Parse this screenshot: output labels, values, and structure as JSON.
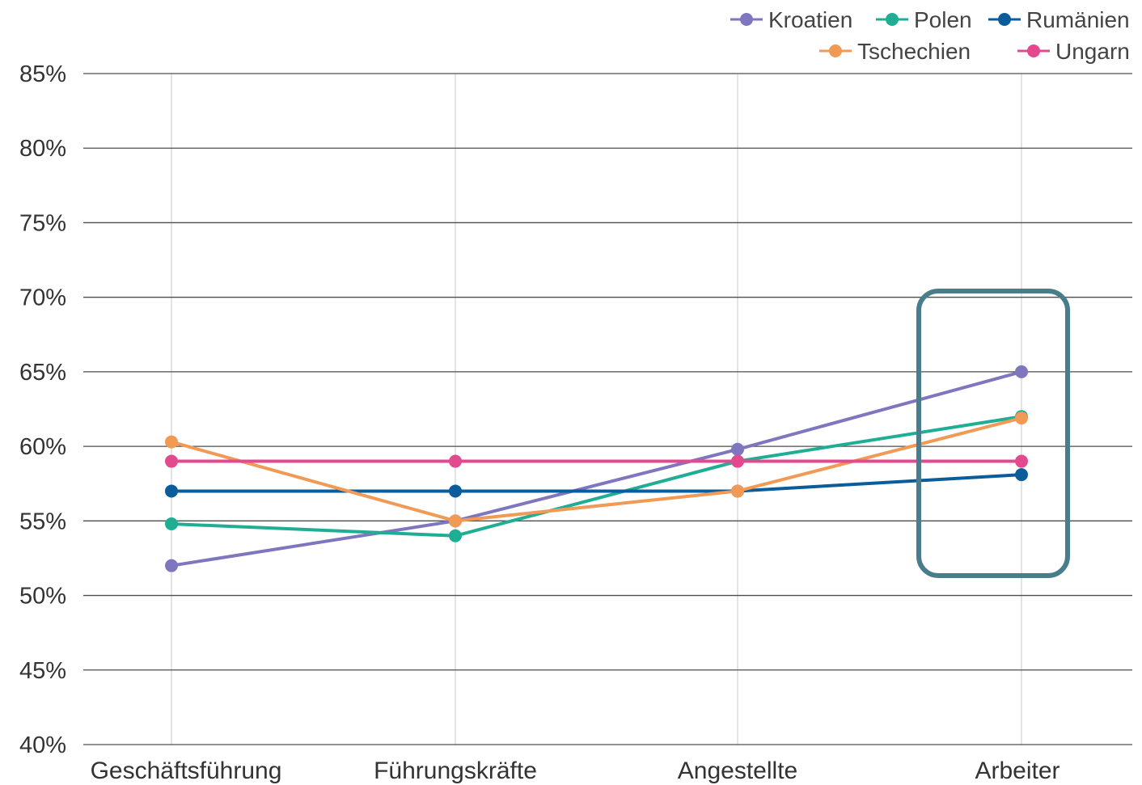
{
  "chart_data": {
    "type": "line",
    "title": "",
    "xlabel": "",
    "ylabel": "",
    "categories": [
      "Geschäftsführung",
      "Führungskräfte",
      "Angestellte",
      "Arbeiter"
    ],
    "ylim": [
      40,
      85
    ],
    "yticks": [
      40,
      45,
      50,
      55,
      60,
      65,
      70,
      75,
      80,
      85
    ],
    "ytick_labels": [
      "40%",
      "45%",
      "50%",
      "55%",
      "60%",
      "65%",
      "70%",
      "75%",
      "80%",
      "85%"
    ],
    "y_unit": "%",
    "grid": {
      "horizontal": true,
      "vertical": true
    },
    "legend_position": "top-right",
    "highlight": {
      "category": "Arbeiter",
      "color": "#4a7d8c"
    },
    "series": [
      {
        "name": "Kroatien",
        "color": "#7e76be",
        "values": [
          52,
          55,
          59.8,
          65
        ]
      },
      {
        "name": "Polen",
        "color": "#1fae94",
        "values": [
          54.8,
          54,
          59,
          62
        ]
      },
      {
        "name": "Rumänien",
        "color": "#0b5c9a",
        "values": [
          57,
          57,
          57,
          58.1
        ]
      },
      {
        "name": "Tschechien",
        "color": "#f09a55",
        "values": [
          60.3,
          55,
          57,
          61.9
        ]
      },
      {
        "name": "Ungarn",
        "color": "#e2498f",
        "values": [
          59,
          59,
          59,
          59
        ]
      }
    ]
  }
}
